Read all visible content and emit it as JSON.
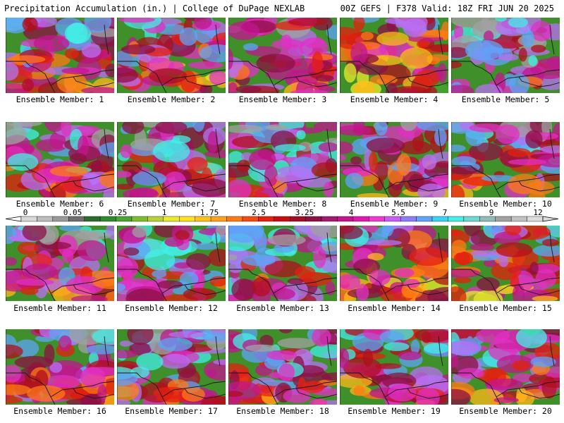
{
  "header": {
    "left_title": "Precipitation Accumulation (in.) | College of DuPage NEXLAB",
    "right_title": "00Z GEFS | F378 Valid: 18Z FRI JUN 20 2025"
  },
  "panels": [
    {
      "caption": "Ensemble Member: 1",
      "intensity": 0.55
    },
    {
      "caption": "Ensemble Member: 2",
      "intensity": 0.45
    },
    {
      "caption": "Ensemble Member: 3",
      "intensity": 0.5
    },
    {
      "caption": "Ensemble Member: 4",
      "intensity": 0.25
    },
    {
      "caption": "Ensemble Member: 5",
      "intensity": 0.75
    },
    {
      "caption": "Ensemble Member: 6",
      "intensity": 0.6
    },
    {
      "caption": "Ensemble Member: 7",
      "intensity": 0.6
    },
    {
      "caption": "Ensemble Member: 8",
      "intensity": 0.65
    },
    {
      "caption": "Ensemble Member: 9",
      "intensity": 0.6
    },
    {
      "caption": "Ensemble Member: 10",
      "intensity": 0.6
    },
    {
      "caption": "Ensemble Member: 11",
      "intensity": 0.6
    },
    {
      "caption": "Ensemble Member: 12",
      "intensity": 0.65
    },
    {
      "caption": "Ensemble Member: 13",
      "intensity": 0.7
    },
    {
      "caption": "Ensemble Member: 14",
      "intensity": 0.4
    },
    {
      "caption": "Ensemble Member: 15",
      "intensity": 0.4
    },
    {
      "caption": "Ensemble Member: 16",
      "intensity": 0.6
    },
    {
      "caption": "Ensemble Member: 17",
      "intensity": 0.7
    },
    {
      "caption": "Ensemble Member: 18",
      "intensity": 0.65
    },
    {
      "caption": "Ensemble Member: 19",
      "intensity": 0.5
    },
    {
      "caption": "Ensemble Member: 20",
      "intensity": 0.55
    }
  ],
  "colorbar": {
    "unit": "in.",
    "ticks": [
      "0",
      "0.05",
      "0.25",
      "1",
      "1.75",
      "2.5",
      "3.25",
      "4",
      "5.5",
      "7",
      "9",
      "12"
    ],
    "colors": [
      "#d8d8d8",
      "#bdbdbd",
      "#9a9a9a",
      "#6f6f6f",
      "#2f6b2f",
      "#2e8b2e",
      "#4aa531",
      "#7dbd2e",
      "#b8d234",
      "#e9ec2c",
      "#ffe21f",
      "#ffc21a",
      "#ffa11a",
      "#ff7a14",
      "#f44b11",
      "#e4200f",
      "#c80d12",
      "#a30c26",
      "#8c1044",
      "#a31a6e",
      "#c2158e",
      "#de19ae",
      "#f23ad0",
      "#c85cf4",
      "#8f7cf7",
      "#5ea4f7",
      "#39d4f2",
      "#43efe6",
      "#6fd9cf",
      "#8fbdb9",
      "#a2a2a2",
      "#c2c2c2",
      "#dcdcdc"
    ]
  }
}
